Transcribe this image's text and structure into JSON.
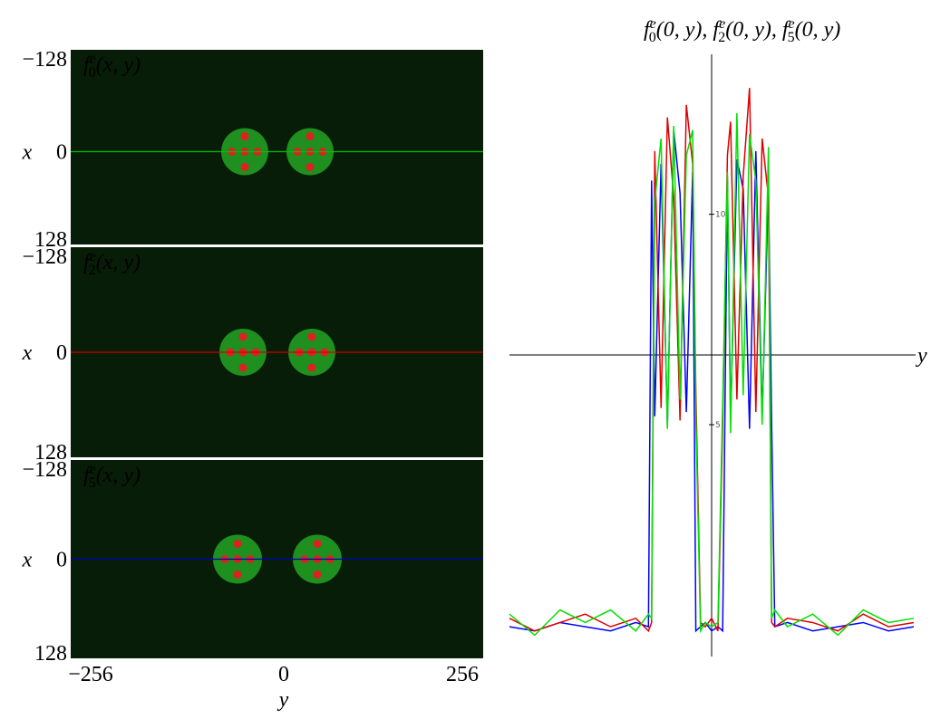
{
  "panels": [
    {
      "label": {
        "func": "f",
        "sup": "e",
        "sub": "0",
        "args": "(x, y)"
      },
      "ytick_top": "−128",
      "ytick_mid": "0",
      "ytick_bottom": "128",
      "ylabel": "x",
      "line_color": "#00c000"
    },
    {
      "label": {
        "func": "f",
        "sup": "e",
        "sub": "2",
        "args": "(x, y)"
      },
      "ytick_top": "−128",
      "ytick_mid": "0",
      "ytick_bottom": "128",
      "ylabel": "x",
      "line_color": "#d00000"
    },
    {
      "label": {
        "func": "f",
        "sup": "e",
        "sub": "5",
        "args": "(x, y)"
      },
      "ytick_top": "−128",
      "ytick_mid": "0",
      "ytick_bottom": "128",
      "ylabel": "x",
      "line_color": "#0000c0"
    }
  ],
  "bottom_axis": {
    "ticks": [
      "−256",
      "0",
      "256"
    ],
    "label": "y"
  },
  "chart_data": {
    "type": "line",
    "title": [
      {
        "func": "f",
        "sup": "e",
        "sub": "0",
        "args": "(0, y),"
      },
      {
        "func": "f",
        "sup": "e",
        "sub": "2",
        "args": "(0, y),"
      },
      {
        "func": "f",
        "sup": "e",
        "sub": "5",
        "args": "(0, y)"
      }
    ],
    "x_label": "y",
    "x": [
      -256,
      -224,
      -192,
      -160,
      -128,
      -96,
      -80,
      -76,
      -72,
      -64,
      -56,
      -48,
      -40,
      -32,
      -24,
      -20,
      -14,
      -8,
      0,
      8,
      14,
      20,
      24,
      32,
      40,
      48,
      56,
      64,
      72,
      76,
      80,
      96,
      128,
      160,
      192,
      224,
      256
    ],
    "series": [
      {
        "name": "f5",
        "color": "#0000ff",
        "values": [
          0.2,
          0.1,
          0.3,
          0.2,
          0.1,
          0.3,
          0.2,
          10.8,
          5.2,
          11.2,
          5.0,
          12.0,
          10.5,
          5.3,
          11.0,
          0.1,
          0.2,
          0.3,
          0.1,
          0.2,
          0.1,
          10.9,
          5.1,
          11.3,
          10.6,
          4.9,
          11.5,
          5.2,
          10.7,
          5.0,
          0.2,
          0.3,
          0.1,
          0.2,
          0.3,
          0.1,
          0.2
        ]
      },
      {
        "name": "f2",
        "color": "#e00000",
        "values": [
          0.4,
          0.1,
          0.3,
          0.5,
          0.2,
          0.4,
          0.1,
          0.3,
          11.5,
          5.4,
          12.3,
          10.4,
          5.1,
          12.6,
          11.2,
          5.8,
          0.3,
          0.2,
          0.4,
          0.1,
          5.0,
          11.4,
          12.2,
          5.6,
          10.9,
          13.0,
          5.3,
          11.8,
          10.4,
          0.3,
          0.2,
          0.4,
          0.3,
          0.1,
          0.5,
          0.2,
          0.3
        ]
      },
      {
        "name": "f0",
        "color": "#00e000",
        "values": [
          0.5,
          0.0,
          0.6,
          0.3,
          0.6,
          0.1,
          0.5,
          0.4,
          10.3,
          11.8,
          4.9,
          12.1,
          5.6,
          11.4,
          12.0,
          5.2,
          0.1,
          0.3,
          0.2,
          0.3,
          5.5,
          11.0,
          4.8,
          12.4,
          5.7,
          11.9,
          10.8,
          5.0,
          11.6,
          0.4,
          0.6,
          0.2,
          0.5,
          0.0,
          0.6,
          0.3,
          0.4
        ]
      }
    ],
    "xlim": [
      -256,
      256
    ],
    "ylim": [
      -0.4,
      13.8
    ],
    "yticks": [
      5,
      10
    ]
  }
}
